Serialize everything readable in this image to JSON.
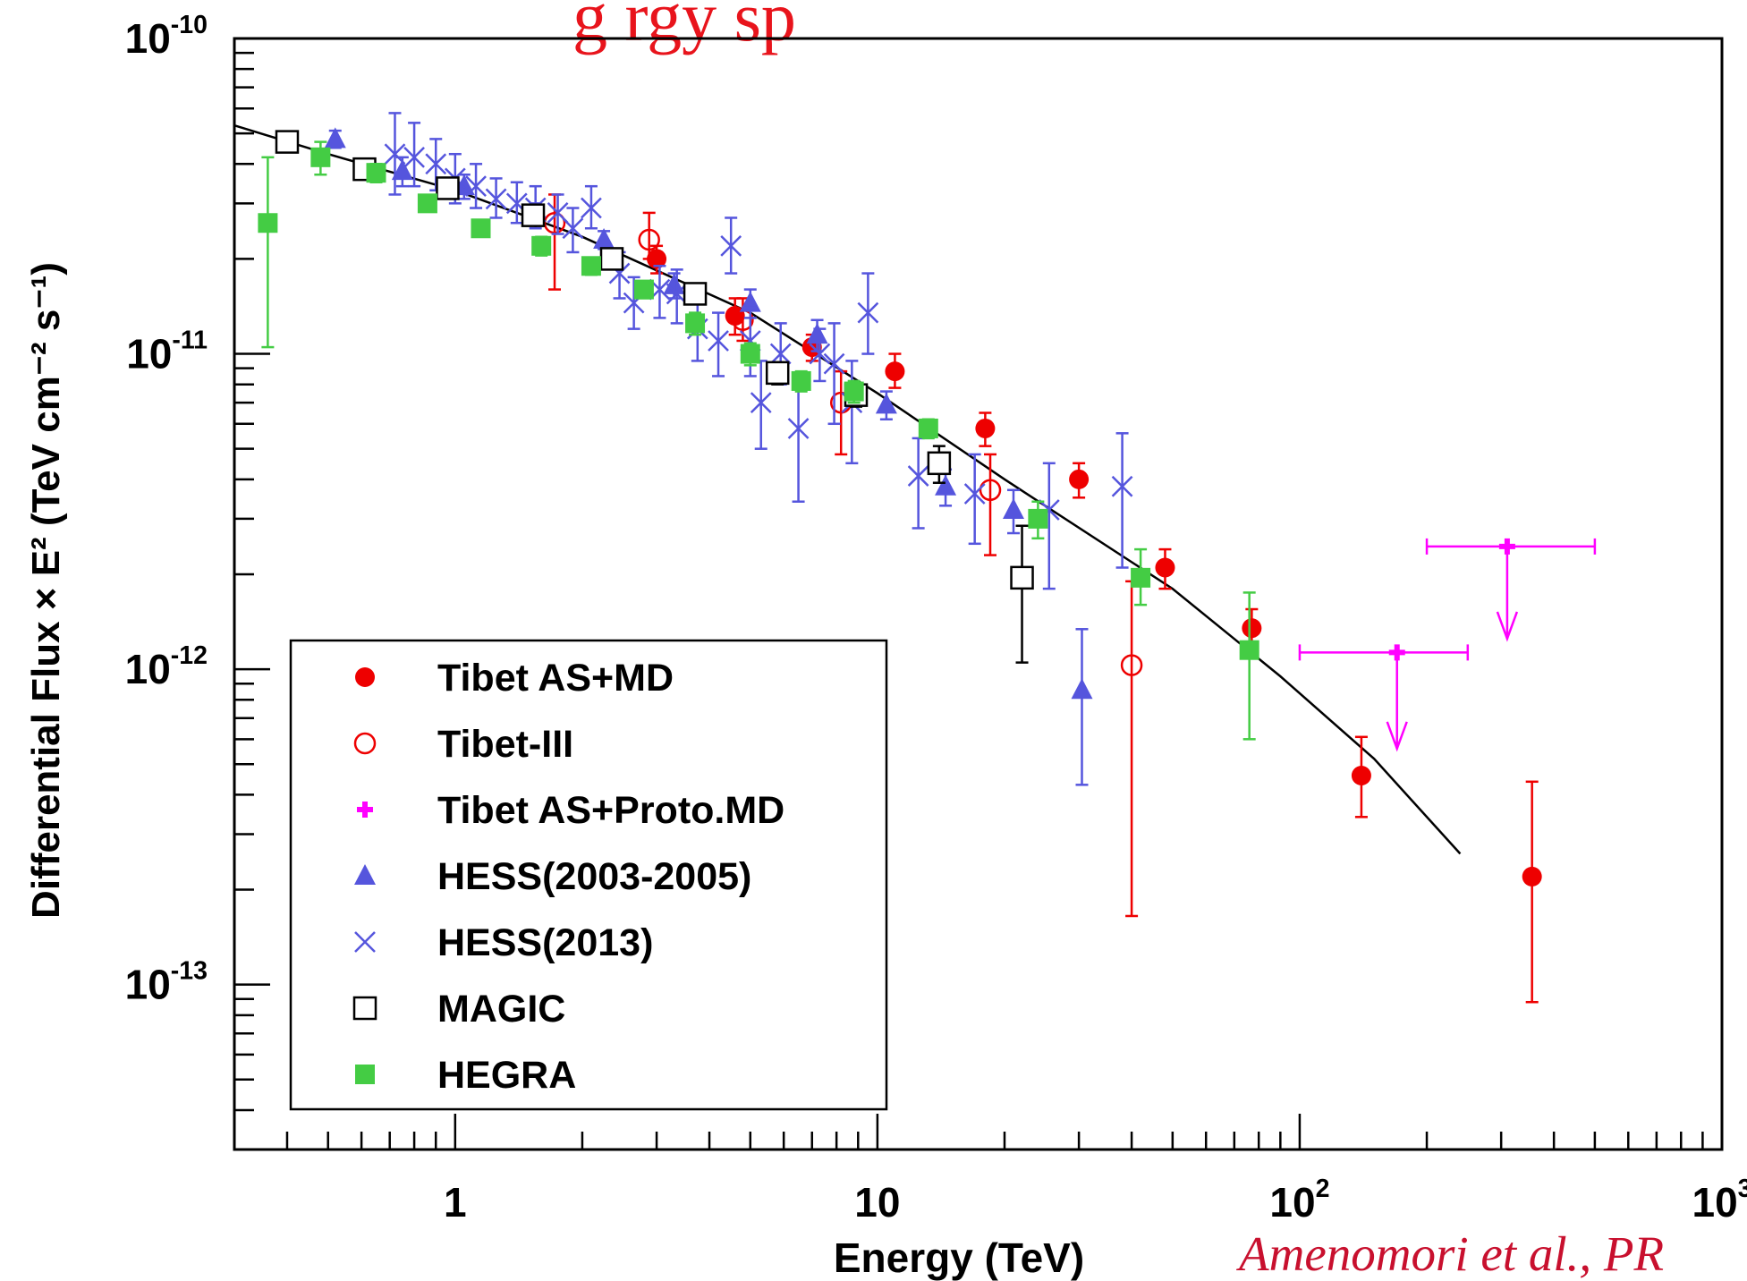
{
  "header": {
    "title": "g     rgy sp"
  },
  "citation": "Amenomori et al., PR",
  "colors": {
    "tibet_asmd": "#ee0000",
    "tibet_iii": "#ee0000",
    "tibet_proto": "#ff00ff",
    "hess2005": "#5555dd",
    "hess2013": "#5555dd",
    "magic": "#000000",
    "hegra": "#44cc44",
    "fit": "#000000"
  },
  "chart_data": {
    "type": "scatter",
    "xlabel": "Energy (TeV)",
    "ylabel": "Differential Flux × E² (TeV cm⁻² s⁻¹)",
    "xscale": "log",
    "yscale": "log",
    "xlim": [
      0.3,
      1000
    ],
    "ylim": [
      3e-14,
      1e-10
    ],
    "grid": false,
    "legend_position": "bottom-left",
    "x_tick_labels": [
      {
        "value": 1,
        "base": "1",
        "exp": ""
      },
      {
        "value": 10,
        "base": "10",
        "exp": ""
      },
      {
        "value": 100,
        "base": "10",
        "exp": "2"
      },
      {
        "value": 1000,
        "base": "10",
        "exp": "3"
      }
    ],
    "y_tick_labels": [
      {
        "value": 1e-10,
        "base": "10",
        "exp": "-10"
      },
      {
        "value": 1e-11,
        "base": "10",
        "exp": "-11"
      },
      {
        "value": 1e-12,
        "base": "10",
        "exp": "-12"
      },
      {
        "value": 1e-13,
        "base": "10",
        "exp": "-13"
      }
    ],
    "fit_curve": [
      [
        0.3,
        5.3e-11
      ],
      [
        0.5,
        4.3e-11
      ],
      [
        1,
        3.3e-11
      ],
      [
        2,
        2.35e-11
      ],
      [
        5,
        1.35e-11
      ],
      [
        10,
        7.5e-12
      ],
      [
        20,
        4e-12
      ],
      [
        50,
        1.8e-12
      ],
      [
        90,
        9.5e-13
      ],
      [
        150,
        5.2e-13
      ],
      [
        240,
        2.6e-13
      ]
    ],
    "series": [
      {
        "name": "Tibet AS+MD",
        "marker": "filled-circle",
        "color_key": "tibet_asmd",
        "points": [
          {
            "x": 3.0,
            "y": 2e-11,
            "lo": 1.8e-11,
            "hi": 2.2e-11
          },
          {
            "x": 4.6,
            "y": 1.32e-11,
            "lo": 1.15e-11,
            "hi": 1.5e-11
          },
          {
            "x": 7.0,
            "y": 1.05e-11,
            "lo": 9.5e-12,
            "hi": 1.15e-11
          },
          {
            "x": 11.0,
            "y": 8.8e-12,
            "lo": 7.8e-12,
            "hi": 1e-11
          },
          {
            "x": 18.0,
            "y": 5.8e-12,
            "lo": 5.1e-12,
            "hi": 6.5e-12
          },
          {
            "x": 30.0,
            "y": 4e-12,
            "lo": 3.5e-12,
            "hi": 4.5e-12
          },
          {
            "x": 48.0,
            "y": 2.1e-12,
            "lo": 1.8e-12,
            "hi": 2.4e-12
          },
          {
            "x": 77.0,
            "y": 1.35e-12,
            "lo": 1.15e-12,
            "hi": 1.55e-12
          },
          {
            "x": 140.0,
            "y": 4.6e-13,
            "lo": 3.4e-13,
            "hi": 6.1e-13
          },
          {
            "x": 355.0,
            "y": 2.2e-13,
            "lo": 8.8e-14,
            "hi": 4.4e-13
          }
        ]
      },
      {
        "name": "Tibet-III",
        "marker": "open-circle",
        "color_key": "tibet_iii",
        "points": [
          {
            "x": 1.72,
            "y": 2.6e-11,
            "lo": 1.6e-11,
            "hi": 3.2e-11
          },
          {
            "x": 2.88,
            "y": 2.3e-11,
            "lo": 2e-11,
            "hi": 2.8e-11
          },
          {
            "x": 4.8,
            "y": 1.28e-11,
            "lo": 1.1e-11,
            "hi": 1.5e-11
          },
          {
            "x": 8.2,
            "y": 7e-12,
            "lo": 4.8e-12,
            "hi": 8.8e-12
          },
          {
            "x": 18.5,
            "y": 3.7e-12,
            "lo": 2.3e-12,
            "hi": 4.8e-12
          },
          {
            "x": 40.0,
            "y": 1.03e-12,
            "lo": 1.65e-13,
            "hi": 1.9e-12
          }
        ]
      },
      {
        "name": "Tibet AS+Proto.MD",
        "marker": "plus-upper-limit",
        "color_key": "tibet_proto",
        "points": [
          {
            "x": 170.0,
            "y": 1.13e-12,
            "xlo": 100.0,
            "xhi": 250.0,
            "arrow_to": 5.6e-13
          },
          {
            "x": 310.0,
            "y": 2.45e-12,
            "xlo": 200.0,
            "xhi": 500.0,
            "arrow_to": 1.25e-12
          }
        ]
      },
      {
        "name": "HESS(2003-2005)",
        "marker": "filled-triangle",
        "color_key": "hess2005",
        "points": [
          {
            "x": 0.52,
            "y": 4.8e-11,
            "lo": 4.5e-11,
            "hi": 5.1e-11
          },
          {
            "x": 0.75,
            "y": 3.8e-11,
            "lo": 3.4e-11,
            "hi": 4.2e-11
          },
          {
            "x": 1.05,
            "y": 3.4e-11,
            "lo": 3.1e-11,
            "hi": 3.7e-11
          },
          {
            "x": 1.55,
            "y": 2.8e-11,
            "lo": 2.6e-11,
            "hi": 3e-11
          },
          {
            "x": 2.25,
            "y": 2.3e-11,
            "lo": 2.15e-11,
            "hi": 2.45e-11
          },
          {
            "x": 3.3,
            "y": 1.65e-11,
            "lo": 1.5e-11,
            "hi": 1.8e-11
          },
          {
            "x": 5.0,
            "y": 1.45e-11,
            "lo": 1.3e-11,
            "hi": 1.6e-11
          },
          {
            "x": 7.2,
            "y": 1.15e-11,
            "lo": 1.02e-11,
            "hi": 1.28e-11
          },
          {
            "x": 10.5,
            "y": 6.9e-12,
            "lo": 6.2e-12,
            "hi": 7.6e-12
          },
          {
            "x": 14.5,
            "y": 3.8e-12,
            "lo": 3.3e-12,
            "hi": 4.3e-12
          },
          {
            "x": 21.0,
            "y": 3.2e-12,
            "lo": 2.7e-12,
            "hi": 3.7e-12
          },
          {
            "x": 30.5,
            "y": 8.6e-13,
            "lo": 4.3e-13,
            "hi": 1.34e-12
          }
        ]
      },
      {
        "name": "HESS(2013)",
        "marker": "cross",
        "color_key": "hess2013",
        "points": [
          {
            "x": 0.72,
            "y": 4.3e-11,
            "lo": 3.2e-11,
            "hi": 5.8e-11
          },
          {
            "x": 0.8,
            "y": 4.2e-11,
            "lo": 3.4e-11,
            "hi": 5.4e-11
          },
          {
            "x": 0.9,
            "y": 4e-11,
            "lo": 3.3e-11,
            "hi": 4.8e-11
          },
          {
            "x": 1.0,
            "y": 3.6e-11,
            "lo": 3e-11,
            "hi": 4.3e-11
          },
          {
            "x": 1.12,
            "y": 3.4e-11,
            "lo": 2.9e-11,
            "hi": 4e-11
          },
          {
            "x": 1.25,
            "y": 3.1e-11,
            "lo": 2.7e-11,
            "hi": 3.6e-11
          },
          {
            "x": 1.4,
            "y": 3e-11,
            "lo": 2.6e-11,
            "hi": 3.5e-11
          },
          {
            "x": 1.55,
            "y": 2.9e-11,
            "lo": 2.5e-11,
            "hi": 3.4e-11
          },
          {
            "x": 1.75,
            "y": 2.8e-11,
            "lo": 2.4e-11,
            "hi": 3.2e-11
          },
          {
            "x": 1.9,
            "y": 2.5e-11,
            "lo": 2.1e-11,
            "hi": 2.9e-11
          },
          {
            "x": 2.1,
            "y": 2.9e-11,
            "lo": 2.5e-11,
            "hi": 3.4e-11
          },
          {
            "x": 2.45,
            "y": 1.8e-11,
            "lo": 1.5e-11,
            "hi": 2.1e-11
          },
          {
            "x": 2.65,
            "y": 1.45e-11,
            "lo": 1.2e-11,
            "hi": 1.75e-11
          },
          {
            "x": 3.05,
            "y": 1.6e-11,
            "lo": 1.3e-11,
            "hi": 1.9e-11
          },
          {
            "x": 3.35,
            "y": 1.55e-11,
            "lo": 1.25e-11,
            "hi": 1.85e-11
          },
          {
            "x": 3.75,
            "y": 1.2e-11,
            "lo": 9.5e-12,
            "hi": 1.5e-11
          },
          {
            "x": 4.2,
            "y": 1.1e-11,
            "lo": 8.5e-12,
            "hi": 1.35e-11
          },
          {
            "x": 4.5,
            "y": 2.2e-11,
            "lo": 1.8e-11,
            "hi": 2.7e-11
          },
          {
            "x": 5.0,
            "y": 1.1e-11,
            "lo": 8.5e-12,
            "hi": 1.4e-11
          },
          {
            "x": 5.3,
            "y": 7e-12,
            "lo": 5e-12,
            "hi": 9.5e-12
          },
          {
            "x": 5.9,
            "y": 1e-11,
            "lo": 8e-12,
            "hi": 1.25e-11
          },
          {
            "x": 6.5,
            "y": 5.8e-12,
            "lo": 3.4e-12,
            "hi": 8e-12
          },
          {
            "x": 7.3,
            "y": 1e-11,
            "lo": 8.2e-12,
            "hi": 1.2e-11
          },
          {
            "x": 7.9,
            "y": 9.3e-12,
            "lo": 6e-12,
            "hi": 1.25e-11
          },
          {
            "x": 8.7,
            "y": 7e-12,
            "lo": 4.5e-12,
            "hi": 9.5e-12
          },
          {
            "x": 9.5,
            "y": 1.35e-11,
            "lo": 1e-11,
            "hi": 1.8e-11
          },
          {
            "x": 12.5,
            "y": 4.1e-12,
            "lo": 2.8e-12,
            "hi": 5.4e-12
          },
          {
            "x": 17.0,
            "y": 3.6e-12,
            "lo": 2.5e-12,
            "hi": 4.8e-12
          },
          {
            "x": 25.5,
            "y": 3.2e-12,
            "lo": 1.8e-12,
            "hi": 4.5e-12
          },
          {
            "x": 38.0,
            "y": 3.8e-12,
            "lo": 2.1e-12,
            "hi": 5.6e-12
          }
        ]
      },
      {
        "name": "MAGIC",
        "marker": "open-square",
        "color_key": "magic",
        "points": [
          {
            "x": 0.4,
            "y": 4.7e-11,
            "lo": 4.5e-11,
            "hi": 4.9e-11
          },
          {
            "x": 0.61,
            "y": 3.85e-11,
            "lo": 3.7e-11,
            "hi": 4e-11
          },
          {
            "x": 0.96,
            "y": 3.35e-11,
            "lo": 3.2e-11,
            "hi": 3.5e-11
          },
          {
            "x": 1.53,
            "y": 2.75e-11,
            "lo": 2.6e-11,
            "hi": 2.9e-11
          },
          {
            "x": 2.35,
            "y": 2e-11,
            "lo": 1.9e-11,
            "hi": 2.1e-11
          },
          {
            "x": 3.7,
            "y": 1.55e-11,
            "lo": 1.45e-11,
            "hi": 1.65e-11
          },
          {
            "x": 5.8,
            "y": 8.7e-12,
            "lo": 8e-12,
            "hi": 9.4e-12
          },
          {
            "x": 8.9,
            "y": 7.4e-12,
            "lo": 6.8e-12,
            "hi": 8e-12
          },
          {
            "x": 14.0,
            "y": 4.5e-12,
            "lo": 3.9e-12,
            "hi": 5.1e-12
          },
          {
            "x": 22.0,
            "y": 1.95e-12,
            "lo": 1.05e-12,
            "hi": 2.85e-12
          }
        ]
      },
      {
        "name": "HEGRA",
        "marker": "filled-square",
        "color_key": "hegra",
        "points": [
          {
            "x": 0.36,
            "y": 2.6e-11,
            "lo": 1.05e-11,
            "hi": 4.2e-11
          },
          {
            "x": 0.48,
            "y": 4.2e-11,
            "lo": 3.7e-11,
            "hi": 4.7e-11
          },
          {
            "x": 0.65,
            "y": 3.75e-11,
            "lo": 3.5e-11,
            "hi": 4e-11
          },
          {
            "x": 0.86,
            "y": 3e-11,
            "lo": 2.85e-11,
            "hi": 3.15e-11
          },
          {
            "x": 1.15,
            "y": 2.5e-11,
            "lo": 2.35e-11,
            "hi": 2.65e-11
          },
          {
            "x": 1.6,
            "y": 2.2e-11,
            "lo": 2.05e-11,
            "hi": 2.35e-11
          },
          {
            "x": 2.1,
            "y": 1.9e-11,
            "lo": 1.78e-11,
            "hi": 2.02e-11
          },
          {
            "x": 2.8,
            "y": 1.6e-11,
            "lo": 1.5e-11,
            "hi": 1.7e-11
          },
          {
            "x": 3.7,
            "y": 1.25e-11,
            "lo": 1.15e-11,
            "hi": 1.35e-11
          },
          {
            "x": 5.0,
            "y": 1e-11,
            "lo": 9.2e-12,
            "hi": 1.08e-11
          },
          {
            "x": 6.6,
            "y": 8.2e-12,
            "lo": 7.6e-12,
            "hi": 8.8e-12
          },
          {
            "x": 8.8,
            "y": 7.6e-12,
            "lo": 7e-12,
            "hi": 8.2e-12
          },
          {
            "x": 13.2,
            "y": 5.8e-12,
            "lo": 5.4e-12,
            "hi": 6.2e-12
          },
          {
            "x": 24.0,
            "y": 3e-12,
            "lo": 2.6e-12,
            "hi": 3.4e-12
          },
          {
            "x": 42.0,
            "y": 1.95e-12,
            "lo": 1.6e-12,
            "hi": 2.4e-12
          },
          {
            "x": 76.0,
            "y": 1.15e-12,
            "lo": 6e-13,
            "hi": 1.75e-12
          }
        ]
      }
    ]
  }
}
